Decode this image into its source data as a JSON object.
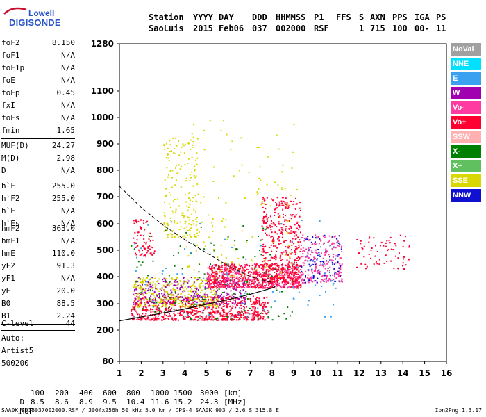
{
  "logo": {
    "line1": "Lowell",
    "line2": "DIGISONDE"
  },
  "header": {
    "labels": [
      "Station",
      "YYYY",
      "DAY",
      "DDD",
      "HHMMSS",
      "P1",
      "FFS",
      "S",
      "AXN",
      "PPS",
      "IGA",
      "PS"
    ],
    "values": [
      "SaoLuis",
      "2015",
      "Feb06",
      "037",
      "002000",
      "RSF",
      "1",
      "715",
      "100",
      "00-",
      "11"
    ]
  },
  "params": [
    {
      "label": "foF2",
      "value": "8.150"
    },
    {
      "label": "foF1",
      "value": "N/A"
    },
    {
      "label": "foF1p",
      "value": "N/A"
    },
    {
      "label": "foE",
      "value": "N/A"
    },
    {
      "label": "foEp",
      "value": "0.45"
    },
    {
      "label": "fxI",
      "value": "N/A"
    },
    {
      "label": "foEs",
      "value": "N/A"
    },
    {
      "label": "fmin",
      "value": "1.65"
    },
    {
      "label": "MUF(D)",
      "value": "24.27"
    },
    {
      "label": "M(D)",
      "value": "2.98"
    },
    {
      "label": "D",
      "value": "N/A"
    },
    {
      "label": "h`F",
      "value": "255.0"
    },
    {
      "label": "h`F2",
      "value": "255.0"
    },
    {
      "label": "h`E",
      "value": "N/A"
    },
    {
      "label": "h`Es",
      "value": "N/A"
    },
    {
      "label": "hmF2",
      "value": "363.0"
    },
    {
      "label": "hmF1",
      "value": "N/A"
    },
    {
      "label": "hmE",
      "value": "110.0"
    },
    {
      "label": "yF2",
      "value": "91.3"
    },
    {
      "label": "yF1",
      "value": "N/A"
    },
    {
      "label": "yE",
      "value": "20.0"
    },
    {
      "label": "B0",
      "value": "88.5"
    },
    {
      "label": "B1",
      "value": "2.24"
    },
    {
      "label": "C-level",
      "value": "44"
    }
  ],
  "auto": {
    "line1": "Auto:",
    "line2": "Artist5",
    "line3": "500200"
  },
  "legend": [
    {
      "label": "NoVal",
      "color": "#a0a0a0"
    },
    {
      "label": "NNE",
      "color": "#00e0ff"
    },
    {
      "label": "E",
      "color": "#3aa0f0"
    },
    {
      "label": "W",
      "color": "#a000b0"
    },
    {
      "label": "Vo-",
      "color": "#ff3aa0"
    },
    {
      "label": "Vo+",
      "color": "#ff0030"
    },
    {
      "label": "SSW",
      "color": "#ffb0b0"
    },
    {
      "label": "X-",
      "color": "#008000"
    },
    {
      "label": "X+",
      "color": "#60c060"
    },
    {
      "label": "SSE",
      "color": "#d8d800"
    },
    {
      "label": "NNW",
      "color": "#1010d0"
    }
  ],
  "bottom": {
    "d_label": "D",
    "d_values": [
      "100",
      "200",
      "400",
      "600",
      "800",
      "1000",
      "1500",
      "3000",
      "[km]"
    ],
    "muf_label": "MUF",
    "muf_values": [
      "8.5",
      "8.6",
      "8.9",
      "9.5",
      "10.4",
      "11.6",
      "15.2",
      "24.3",
      "[MHz]"
    ]
  },
  "footer": {
    "left": "SAA0K_2015037002000.RSF / 300fx256h 50 kHz 5.0 km / DPS-4 SAA0K 903 / 2.6 S 315.8 E",
    "right": "Ion2Png 1.3.17"
  },
  "chart_data": {
    "type": "scatter",
    "title": "",
    "xlabel": "",
    "ylabel": "",
    "xlim": [
      1,
      16
    ],
    "ylim": [
      80,
      1280
    ],
    "x_ticks": [
      "1",
      "2",
      "3",
      "4",
      "5",
      "6",
      "7",
      "8",
      "9",
      "10",
      "11",
      "12",
      "13",
      "14",
      "15",
      "16"
    ],
    "y_ticks": [
      "80",
      "200",
      "300",
      "400",
      "500",
      "600",
      "700",
      "800",
      "900",
      "1000",
      "1100",
      "1280"
    ],
    "y_tick_values": [
      80,
      200,
      300,
      400,
      500,
      600,
      700,
      800,
      900,
      1000,
      1100,
      1280
    ],
    "scale": "y axis shows virtual height in km with compressed low range",
    "profile_curve": [
      [
        1.0,
        235
      ],
      [
        2.0,
        250
      ],
      [
        3.0,
        265
      ],
      [
        4.0,
        280
      ],
      [
        5.0,
        298
      ],
      [
        6.0,
        315
      ],
      [
        7.0,
        335
      ],
      [
        8.0,
        358
      ],
      [
        8.15,
        363
      ]
    ],
    "dashed_curve": [
      [
        1.0,
        740
      ],
      [
        2.0,
        660
      ],
      [
        3.0,
        595
      ],
      [
        4.0,
        540
      ],
      [
        5.0,
        490
      ],
      [
        6.0,
        440
      ],
      [
        7.0,
        400
      ],
      [
        8.0,
        378
      ]
    ],
    "clusters": [
      {
        "name": "o-trace low",
        "x0": 1.5,
        "x1": 7.8,
        "y0": 240,
        "y1": 330,
        "color": "#ff0030",
        "n": 700
      },
      {
        "name": "o-trace mid",
        "x0": 1.6,
        "x1": 6.8,
        "y0": 300,
        "y1": 400,
        "color": "#a000b0",
        "n": 350
      },
      {
        "name": "x-trace",
        "x0": 1.6,
        "x1": 5.5,
        "y0": 290,
        "y1": 400,
        "color": "#d8d800",
        "n": 300
      },
      {
        "name": "F2 band",
        "x0": 5.0,
        "x1": 9.3,
        "y0": 360,
        "y1": 450,
        "color": "#ff0030",
        "n": 600
      },
      {
        "name": "F2 band pink",
        "x0": 5.0,
        "x1": 9.3,
        "y0": 360,
        "y1": 450,
        "color": "#ff3aa0",
        "n": 250
      },
      {
        "name": "F2 column",
        "x0": 7.5,
        "x1": 9.3,
        "y0": 380,
        "y1": 700,
        "color": "#ff0030",
        "n": 400
      },
      {
        "name": "spread F",
        "x0": 9.3,
        "x1": 11.2,
        "y0": 380,
        "y1": 560,
        "color": "#ff3aa0",
        "n": 220
      },
      {
        "name": "spread F other",
        "x0": 9.3,
        "x1": 11.2,
        "y0": 380,
        "y1": 560,
        "color": "#1010d0",
        "n": 90
      },
      {
        "name": "echoes high",
        "x0": 3.0,
        "x1": 4.6,
        "y0": 550,
        "y1": 930,
        "color": "#d8d800",
        "n": 180
      },
      {
        "name": "echoes 2F",
        "x0": 1.6,
        "x1": 2.6,
        "y0": 480,
        "y1": 620,
        "color": "#ff0030",
        "n": 70
      },
      {
        "name": "far echoes",
        "x0": 11.8,
        "x1": 14.3,
        "y0": 430,
        "y1": 560,
        "color": "#ff0030",
        "n": 70
      },
      {
        "name": "vertical spikes",
        "x0": 4.0,
        "x1": 9.2,
        "y0": 400,
        "y1": 1000,
        "color": "#d8d800",
        "n": 130
      },
      {
        "name": "scattered green",
        "x0": 1.5,
        "x1": 9.0,
        "y0": 240,
        "y1": 600,
        "color": "#008000",
        "n": 140
      },
      {
        "name": "scattered blue",
        "x0": 1.5,
        "x1": 11.0,
        "y0": 250,
        "y1": 620,
        "color": "#3aa0f0",
        "n": 90
      }
    ]
  }
}
